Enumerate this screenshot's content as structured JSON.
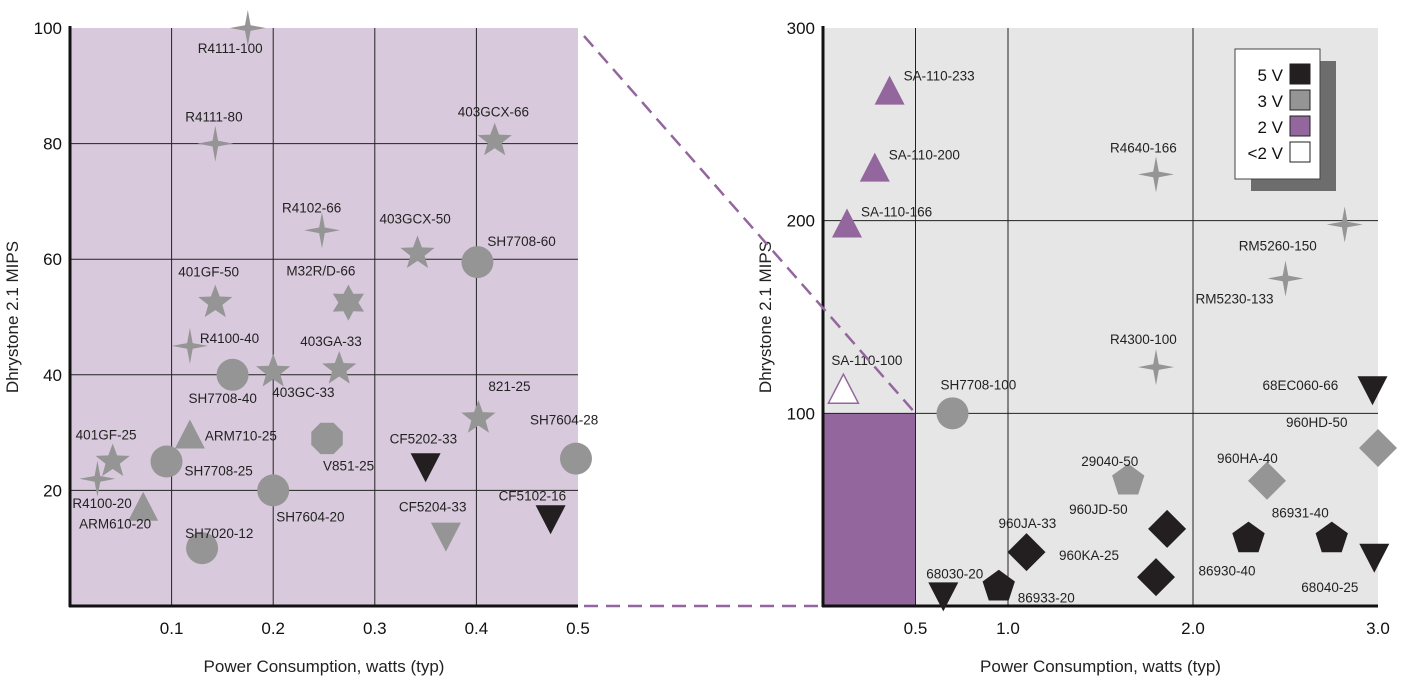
{
  "colors": {
    "left_plot_bg": "#d8cadc",
    "right_plot_bg": "#e6e6e6",
    "grid": "#222222",
    "v5": "#231f20",
    "v3": "#959595",
    "v2": "#93679d",
    "vlt2": "#ffffff",
    "zoom_box": "#93679d"
  },
  "chart_data": [
    {
      "type": "scatter",
      "title": "",
      "xlabel": "Power Consumption, watts (typ)",
      "ylabel": "Dhrystone 2.1 MIPS",
      "xlim": [
        0,
        0.5
      ],
      "ylim": [
        0,
        100
      ],
      "xticks": [
        "0.1",
        "0.2",
        "0.3",
        "0.4",
        "0.5"
      ],
      "yticks": [
        "20",
        "40",
        "60",
        "80",
        "100"
      ],
      "grid": true,
      "points": [
        {
          "label": "R4111-100",
          "x": 0.175,
          "y": 100,
          "shape": "star4",
          "voltage": "3 V"
        },
        {
          "label": "R4111-80",
          "x": 0.143,
          "y": 80,
          "shape": "star4",
          "voltage": "3 V"
        },
        {
          "label": "403GCX-66",
          "x": 0.418,
          "y": 80.5,
          "shape": "star5",
          "voltage": "3 V"
        },
        {
          "label": "R4102-66",
          "x": 0.248,
          "y": 65,
          "shape": "star4",
          "voltage": "3 V"
        },
        {
          "label": "403GCX-50",
          "x": 0.342,
          "y": 61,
          "shape": "star5",
          "voltage": "3 V"
        },
        {
          "label": "SH7708-60",
          "x": 0.401,
          "y": 59.5,
          "shape": "circle",
          "voltage": "3 V"
        },
        {
          "label": "401GF-50",
          "x": 0.143,
          "y": 52.5,
          "shape": "star5",
          "voltage": "3 V"
        },
        {
          "label": "M32R/D-66",
          "x": 0.274,
          "y": 52.5,
          "shape": "star6",
          "voltage": "3 V"
        },
        {
          "label": "R4100-40",
          "x": 0.118,
          "y": 45,
          "shape": "star4",
          "voltage": "3 V"
        },
        {
          "label": "SH7708-40",
          "x": 0.16,
          "y": 40,
          "shape": "circle",
          "voltage": "3 V"
        },
        {
          "label": "403GC-33",
          "x": 0.2,
          "y": 40.5,
          "shape": "star5",
          "voltage": "3 V"
        },
        {
          "label": "403GA-33",
          "x": 0.265,
          "y": 41,
          "shape": "star5",
          "voltage": "3 V"
        },
        {
          "label": "821-25",
          "x": 0.402,
          "y": 32.5,
          "shape": "star5",
          "voltage": "3 V"
        },
        {
          "label": "401GF-25",
          "x": 0.042,
          "y": 25,
          "shape": "star5",
          "voltage": "3 V"
        },
        {
          "label": "ARM710-25",
          "x": 0.118,
          "y": 29.5,
          "shape": "triangle-up",
          "voltage": "3 V"
        },
        {
          "label": "V851-25",
          "x": 0.253,
          "y": 29,
          "shape": "octagon",
          "voltage": "3 V"
        },
        {
          "label": "CF5202-33",
          "x": 0.35,
          "y": 24,
          "shape": "triangle-down",
          "voltage": "5 V"
        },
        {
          "label": "SH7604-28",
          "x": 0.498,
          "y": 25.5,
          "shape": "circle",
          "voltage": "3 V"
        },
        {
          "label": "SH7708-25",
          "x": 0.095,
          "y": 25,
          "shape": "circle",
          "voltage": "3 V"
        },
        {
          "label": "R4100-20",
          "x": 0.027,
          "y": 22,
          "shape": "star4",
          "voltage": "3 V"
        },
        {
          "label": "SH7604-20",
          "x": 0.2,
          "y": 20,
          "shape": "circle",
          "voltage": "3 V"
        },
        {
          "label": "ARM610-20",
          "x": 0.072,
          "y": 17,
          "shape": "triangle-up",
          "voltage": "3 V"
        },
        {
          "label": "CF5204-33",
          "x": 0.37,
          "y": 12,
          "shape": "triangle-down",
          "voltage": "3 V"
        },
        {
          "label": "CF5102-16",
          "x": 0.473,
          "y": 15,
          "shape": "triangle-down",
          "voltage": "5 V"
        },
        {
          "label": "SH7020-12",
          "x": 0.13,
          "y": 10,
          "shape": "circle",
          "voltage": "3 V"
        }
      ]
    },
    {
      "type": "scatter",
      "title": "",
      "xlabel": "Power Consumption, watts (typ)",
      "ylabel": "Dhrystone 2.1 MIPS",
      "xlim": [
        0,
        3.0
      ],
      "ylim": [
        0,
        300
      ],
      "xticks": [
        "0.5",
        "1.0",
        "2.0",
        "3.0"
      ],
      "yticks": [
        "100",
        "200",
        "300"
      ],
      "grid": true,
      "legend": {
        "placement": "top-right",
        "entries": [
          {
            "label": "5 V",
            "color": "#231f20"
          },
          {
            "label": "3 V",
            "color": "#959595"
          },
          {
            "label": "2 V",
            "color": "#93679d"
          },
          {
            "label": "<2 V",
            "color": "#ffffff"
          }
        ]
      },
      "zoom_region": {
        "x": [
          0,
          0.5
        ],
        "y": [
          0,
          100
        ]
      },
      "points": [
        {
          "label": "SA-110-233",
          "x": 0.36,
          "y": 267,
          "shape": "triangle-up",
          "voltage": "2 V"
        },
        {
          "label": "SA-110-200",
          "x": 0.28,
          "y": 227,
          "shape": "triangle-up",
          "voltage": "2 V"
        },
        {
          "label": "SA-110-166",
          "x": 0.13,
          "y": 198,
          "shape": "triangle-up",
          "voltage": "2 V"
        },
        {
          "label": "R4640-166",
          "x": 1.8,
          "y": 224,
          "shape": "star4",
          "voltage": "3 V"
        },
        {
          "label": "RM5260-150",
          "x": 2.82,
          "y": 198,
          "shape": "star4",
          "voltage": "3 V"
        },
        {
          "label": "RM5230-133",
          "x": 2.5,
          "y": 170,
          "shape": "star4",
          "voltage": "3 V"
        },
        {
          "label": "R4300-100",
          "x": 1.8,
          "y": 124,
          "shape": "star4",
          "voltage": "3 V"
        },
        {
          "label": "SA-110-100",
          "x": 0.11,
          "y": 112,
          "shape": "triangle-up",
          "voltage": "<2 V"
        },
        {
          "label": "SH7708-100",
          "x": 0.7,
          "y": 100,
          "shape": "circle",
          "voltage": "3 V"
        },
        {
          "label": "68EC060-66",
          "x": 2.97,
          "y": 112,
          "shape": "triangle-down",
          "voltage": "5 V"
        },
        {
          "label": "960HD-50",
          "x": 3.0,
          "y": 82,
          "shape": "diamond",
          "voltage": "3 V"
        },
        {
          "label": "29040-50",
          "x": 1.65,
          "y": 65,
          "shape": "pentagon",
          "voltage": "3 V"
        },
        {
          "label": "960HA-40",
          "x": 2.4,
          "y": 65,
          "shape": "diamond",
          "voltage": "3 V"
        },
        {
          "label": "960JA-33",
          "x": 1.1,
          "y": 28,
          "shape": "diamond",
          "voltage": "5 V"
        },
        {
          "label": "960JD-50",
          "x": 1.86,
          "y": 40,
          "shape": "diamond",
          "voltage": "5 V"
        },
        {
          "label": "960KA-25",
          "x": 1.8,
          "y": 15,
          "shape": "diamond",
          "voltage": "5 V"
        },
        {
          "label": "86930-40",
          "x": 2.3,
          "y": 35,
          "shape": "pentagon",
          "voltage": "5 V"
        },
        {
          "label": "86931-40",
          "x": 2.75,
          "y": 35,
          "shape": "pentagon",
          "voltage": "5 V"
        },
        {
          "label": "68030-20",
          "x": 0.65,
          "y": 5,
          "shape": "triangle-down",
          "voltage": "5 V"
        },
        {
          "label": "86933-20",
          "x": 0.95,
          "y": 10,
          "shape": "pentagon",
          "voltage": "5 V"
        },
        {
          "label": "68040-25",
          "x": 2.98,
          "y": 25,
          "shape": "triangle-down",
          "voltage": "5 V"
        }
      ]
    }
  ]
}
